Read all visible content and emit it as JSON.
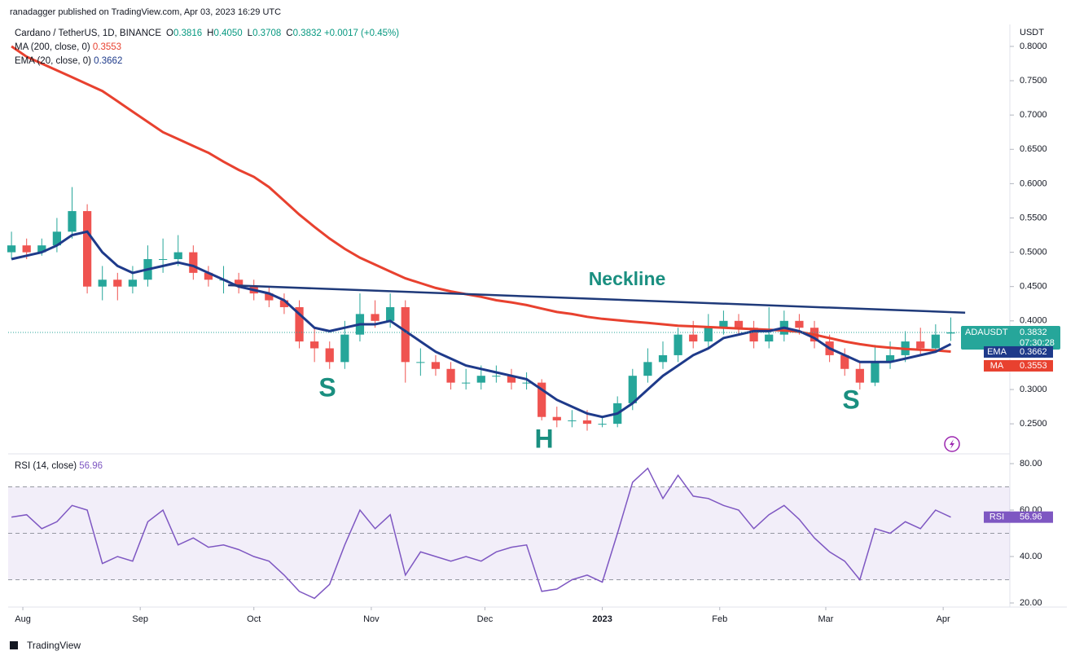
{
  "header": {
    "published": "ranadagger published on TradingView.com, Apr 03, 2023 16:29 UTC",
    "footer": "TradingView"
  },
  "chart_data": {
    "type": "candlestick",
    "legend": {
      "symbol": "Cardano / TetherUS, 1D, BINANCE",
      "ohlc": [
        {
          "key": "O",
          "text": "0.3816"
        },
        {
          "key": "H",
          "text": "0.4050"
        },
        {
          "key": "L",
          "text": "0.3708"
        },
        {
          "key": "C",
          "text": "0.3832"
        }
      ],
      "change": "+0.0017 (+0.45%)"
    },
    "symbol_tag": "ADAUSDT",
    "countdown": "07:30:28",
    "currency": "USDT",
    "up_color": "#26a69a",
    "down_color": "#ef5350",
    "candles": {
      "open": [
        0.5,
        0.51,
        0.5,
        0.51,
        0.53,
        0.56,
        0.45,
        0.46,
        0.45,
        0.46,
        0.49,
        0.49,
        0.5,
        0.47,
        0.46,
        0.46,
        0.45,
        0.44,
        0.43,
        0.42,
        0.37,
        0.36,
        0.34,
        0.38,
        0.41,
        0.4,
        0.42,
        0.34,
        0.34,
        0.33,
        0.31,
        0.31,
        0.32,
        0.32,
        0.31,
        0.31,
        0.26,
        0.255,
        0.255,
        0.25,
        0.25,
        0.28,
        0.32,
        0.34,
        0.35,
        0.38,
        0.37,
        0.39,
        0.4,
        0.39,
        0.37,
        0.38,
        0.4,
        0.39,
        0.37,
        0.35,
        0.33,
        0.31,
        0.34,
        0.35,
        0.37,
        0.36,
        0.3816
      ],
      "high": [
        0.53,
        0.52,
        0.52,
        0.55,
        0.595,
        0.57,
        0.48,
        0.47,
        0.48,
        0.51,
        0.52,
        0.525,
        0.51,
        0.48,
        0.48,
        0.47,
        0.46,
        0.45,
        0.44,
        0.43,
        0.39,
        0.37,
        0.4,
        0.44,
        0.43,
        0.44,
        0.43,
        0.36,
        0.35,
        0.34,
        0.33,
        0.335,
        0.335,
        0.33,
        0.325,
        0.315,
        0.275,
        0.27,
        0.27,
        0.26,
        0.29,
        0.33,
        0.36,
        0.37,
        0.39,
        0.4,
        0.41,
        0.415,
        0.41,
        0.4,
        0.42,
        0.415,
        0.41,
        0.4,
        0.38,
        0.36,
        0.34,
        0.365,
        0.37,
        0.385,
        0.39,
        0.395,
        0.405
      ],
      "low": [
        0.49,
        0.49,
        0.495,
        0.5,
        0.52,
        0.44,
        0.43,
        0.43,
        0.44,
        0.45,
        0.47,
        0.48,
        0.46,
        0.45,
        0.44,
        0.44,
        0.43,
        0.42,
        0.41,
        0.36,
        0.34,
        0.33,
        0.33,
        0.37,
        0.39,
        0.39,
        0.31,
        0.32,
        0.32,
        0.3,
        0.3,
        0.3,
        0.31,
        0.3,
        0.3,
        0.255,
        0.245,
        0.245,
        0.24,
        0.245,
        0.245,
        0.27,
        0.31,
        0.33,
        0.34,
        0.36,
        0.36,
        0.38,
        0.38,
        0.36,
        0.36,
        0.37,
        0.38,
        0.36,
        0.34,
        0.32,
        0.3,
        0.305,
        0.33,
        0.34,
        0.35,
        0.355,
        0.3708
      ],
      "close": [
        0.51,
        0.5,
        0.51,
        0.53,
        0.56,
        0.45,
        0.46,
        0.45,
        0.46,
        0.49,
        0.49,
        0.5,
        0.47,
        0.46,
        0.46,
        0.45,
        0.44,
        0.43,
        0.42,
        0.37,
        0.36,
        0.34,
        0.38,
        0.41,
        0.4,
        0.42,
        0.34,
        0.34,
        0.33,
        0.31,
        0.31,
        0.32,
        0.32,
        0.31,
        0.31,
        0.26,
        0.255,
        0.255,
        0.25,
        0.25,
        0.28,
        0.32,
        0.34,
        0.35,
        0.38,
        0.37,
        0.39,
        0.4,
        0.39,
        0.37,
        0.38,
        0.4,
        0.39,
        0.37,
        0.35,
        0.33,
        0.31,
        0.34,
        0.35,
        0.37,
        0.36,
        0.38,
        0.3832
      ]
    },
    "series": [
      {
        "name": "MA (200, close, 0)",
        "tag": "MA",
        "color": "#e8412f",
        "values": [
          0.8,
          0.785,
          0.775,
          0.765,
          0.755,
          0.745,
          0.735,
          0.72,
          0.705,
          0.69,
          0.675,
          0.665,
          0.655,
          0.645,
          0.632,
          0.62,
          0.61,
          0.595,
          0.575,
          0.555,
          0.537,
          0.52,
          0.505,
          0.492,
          0.482,
          0.472,
          0.462,
          0.455,
          0.448,
          0.443,
          0.439,
          0.435,
          0.43,
          0.427,
          0.423,
          0.418,
          0.413,
          0.41,
          0.406,
          0.403,
          0.401,
          0.399,
          0.397,
          0.395,
          0.393,
          0.392,
          0.391,
          0.39,
          0.389,
          0.388,
          0.387,
          0.386,
          0.384,
          0.38,
          0.375,
          0.37,
          0.366,
          0.363,
          0.361,
          0.359,
          0.358,
          0.357,
          0.3553
        ]
      },
      {
        "name": "EMA (20, close, 0)",
        "tag": "EMA",
        "color": "#1e3a8a",
        "values": [
          0.49,
          0.495,
          0.5,
          0.51,
          0.525,
          0.53,
          0.5,
          0.48,
          0.47,
          0.475,
          0.48,
          0.485,
          0.48,
          0.47,
          0.46,
          0.45,
          0.445,
          0.44,
          0.43,
          0.41,
          0.39,
          0.385,
          0.39,
          0.395,
          0.395,
          0.4,
          0.385,
          0.37,
          0.355,
          0.345,
          0.335,
          0.33,
          0.325,
          0.32,
          0.315,
          0.3,
          0.285,
          0.275,
          0.265,
          0.26,
          0.265,
          0.28,
          0.3,
          0.32,
          0.335,
          0.35,
          0.36,
          0.375,
          0.38,
          0.385,
          0.385,
          0.39,
          0.385,
          0.375,
          0.36,
          0.35,
          0.34,
          0.34,
          0.34,
          0.345,
          0.35,
          0.355,
          0.3662
        ]
      }
    ],
    "xlim": [
      -0.22,
      65.9
    ],
    "xticks": [
      {
        "value": 0.75,
        "label": "Aug"
      },
      {
        "value": 8.5,
        "label": "Sep"
      },
      {
        "value": 16,
        "label": "Oct"
      },
      {
        "value": 23.75,
        "label": "Nov"
      },
      {
        "value": 31.25,
        "label": "Dec"
      },
      {
        "value": 39,
        "label": "2023"
      },
      {
        "value": 46.75,
        "label": "Feb"
      },
      {
        "value": 53.75,
        "label": "Mar"
      },
      {
        "value": 61.5,
        "label": "Apr"
      }
    ],
    "ylim": [
      0.2086,
      0.832
    ],
    "yticks": [
      {
        "value": 0.8,
        "label": "0.8000"
      },
      {
        "value": 0.75,
        "label": "0.7500"
      },
      {
        "value": 0.7,
        "label": "0.7000"
      },
      {
        "value": 0.65,
        "label": "0.6500"
      },
      {
        "value": 0.6,
        "label": "0.6000"
      },
      {
        "value": 0.55,
        "label": "0.5500"
      },
      {
        "value": 0.5,
        "label": "0.5000"
      },
      {
        "value": 0.45,
        "label": "0.4500"
      },
      {
        "value": 0.4,
        "label": "0.4000"
      },
      {
        "value": 0.35,
        "label": "0.3500"
      },
      {
        "value": 0.3,
        "label": "0.3000"
      },
      {
        "value": 0.25,
        "label": "0.2500"
      }
    ],
    "neckline": {
      "label": "Neckline",
      "color": "#1f3a7a",
      "x": [
        14.3,
        62.95
      ],
      "y": [
        0.452,
        0.412
      ]
    },
    "pattern_labels": [
      "S",
      "H",
      "S"
    ],
    "rsi": {
      "name": "RSI (14, close)",
      "tag": "RSI",
      "color": "#7e57c2",
      "values": [
        57,
        58,
        52,
        55,
        62,
        60,
        37,
        40,
        38,
        55,
        60,
        45,
        48,
        44,
        45,
        43,
        40,
        38,
        32,
        25,
        22,
        28,
        45,
        60,
        52,
        58,
        32,
        42,
        40,
        38,
        40,
        38,
        42,
        44,
        45,
        25,
        26,
        30,
        32,
        29,
        50,
        72,
        78,
        65,
        75,
        66,
        65,
        62,
        60,
        52,
        58,
        62,
        56,
        48,
        42,
        38,
        30,
        52,
        50,
        55,
        52,
        60,
        56.96
      ],
      "ylim": [
        18.25,
        83.16
      ],
      "yticks": [
        {
          "value": 80,
          "label": "80.00"
        },
        {
          "value": 60,
          "label": "60.00"
        },
        {
          "value": 40,
          "label": "40.00"
        },
        {
          "value": 20,
          "label": "20.00"
        }
      ],
      "bands": [
        30,
        50,
        70
      ]
    }
  }
}
